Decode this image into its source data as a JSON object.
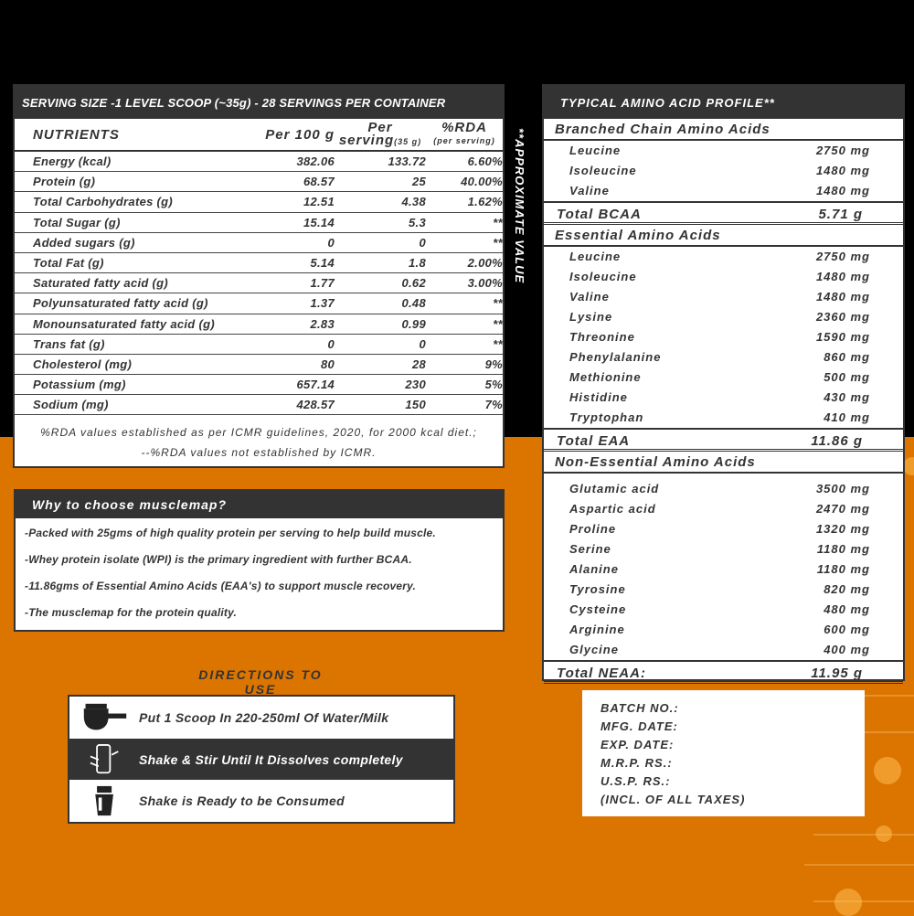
{
  "colors": {
    "background_top": "#000000",
    "background_bottom": "#dc7400",
    "panel_header": "#333333"
  },
  "nutrition": {
    "header": "SERVING SIZE -1 LEVEL SCOOP (~35g) - 28 SERVINGS PER CONTAINER",
    "columns": {
      "nutrients": "NUTRIENTS",
      "per100": "Per 100 g",
      "per_serving": "Per",
      "per_serving2": "serving",
      "per_serving_unit": "(35 g)",
      "rda": "%RDA",
      "rda_sub": "(per serving)"
    },
    "rows": [
      {
        "name": "Energy (kcal)",
        "per100": "382.06",
        "serving": "133.72",
        "rda": "6.60%"
      },
      {
        "name": "Protein (g)",
        "per100": "68.57",
        "serving": "25",
        "rda": "40.00%"
      },
      {
        "name": "Total Carbohydrates (g)",
        "per100": "12.51",
        "serving": "4.38",
        "rda": "1.62%"
      },
      {
        "name": "Total Sugar (g)",
        "per100": "15.14",
        "serving": "5.3",
        "rda": "**"
      },
      {
        "name": "Added sugars (g)",
        "per100": "0",
        "serving": "0",
        "rda": "**"
      },
      {
        "name": "Total Fat (g)",
        "per100": "5.14",
        "serving": "1.8",
        "rda": "2.00%"
      },
      {
        "name": "Saturated fatty acid (g)",
        "per100": "1.77",
        "serving": "0.62",
        "rda": "3.00%"
      },
      {
        "name": "Polyunsaturated fatty acid (g)",
        "per100": "1.37",
        "serving": "0.48",
        "rda": "**"
      },
      {
        "name": "Monounsaturated fatty acid (g)",
        "per100": "2.83",
        "serving": "0.99",
        "rda": "**"
      },
      {
        "name": "Trans fat (g)",
        "per100": "0",
        "serving": "0",
        "rda": "**"
      },
      {
        "name": "Cholesterol (mg)",
        "per100": "80",
        "serving": "28",
        "rda": "9%"
      },
      {
        "name": "Potassium (mg)",
        "per100": "657.14",
        "serving": "230",
        "rda": "5%"
      },
      {
        "name": "Sodium (mg)",
        "per100": "428.57",
        "serving": "150",
        "rda": "7%"
      }
    ],
    "footnote1": "%RDA values established as per ICMR guidelines, 2020, for 2000 kcal diet.;",
    "footnote2": "--%RDA values not established by ICMR."
  },
  "approx_note": "**APPROXIMATE VALUE",
  "why": {
    "title": "Why to choose musclemap?",
    "points": [
      "-Packed with 25gms of high quality protein per serving to help build muscle.",
      "-Whey protein isolate (WPI) is the primary ingredient with further BCAA.",
      "-11.86gms of Essential Amino Acids (EAA's) to support muscle recovery.",
      "-The musclemap for the protein quality."
    ]
  },
  "directions": {
    "title": "DIRECTIONS TO USE",
    "steps": [
      {
        "icon": "scoop-icon",
        "text": "Put 1 Scoop In 220-250ml Of Water/Milk"
      },
      {
        "icon": "shake-hand-icon",
        "text": "Shake & Stir Until It Dissolves completely"
      },
      {
        "icon": "shaker-bottle-icon",
        "text": "Shake is Ready to be Consumed"
      }
    ]
  },
  "amino": {
    "header": "TYPICAL AMINO ACID PROFILE**",
    "bcaa": {
      "title": "Branched Chain Amino Acids",
      "items": [
        [
          "Leucine",
          "2750 mg"
        ],
        [
          "Isoleucine",
          "1480 mg"
        ],
        [
          "Valine",
          "1480 mg"
        ]
      ],
      "total_label": "Total BCAA",
      "total": "5.71 g"
    },
    "eaa": {
      "title": "Essential Amino Acids",
      "items": [
        [
          "Leucine",
          "2750 mg"
        ],
        [
          "Isoleucine",
          "1480 mg"
        ],
        [
          "Valine",
          "1480 mg"
        ],
        [
          "Lysine",
          "2360 mg"
        ],
        [
          "Threonine",
          "1590 mg"
        ],
        [
          "Phenylalanine",
          "860 mg"
        ],
        [
          "Methionine",
          "500 mg"
        ],
        [
          "Histidine",
          "430 mg"
        ],
        [
          "Tryptophan",
          "410 mg"
        ]
      ],
      "total_label": "Total EAA",
      "total": "11.86 g"
    },
    "neaa": {
      "title": "Non-Essential Amino Acids",
      "items": [
        [
          "Glutamic acid",
          "3500 mg"
        ],
        [
          "Aspartic acid",
          "2470 mg"
        ],
        [
          "Proline",
          "1320 mg"
        ],
        [
          "Serine",
          "1180 mg"
        ],
        [
          "Alanine",
          "1180 mg"
        ],
        [
          "Tyrosine",
          "820 mg"
        ],
        [
          "Cysteine",
          "480 mg"
        ],
        [
          "Arginine",
          "600 mg"
        ],
        [
          "Glycine",
          "400 mg"
        ]
      ],
      "total_label": "Total NEAA:",
      "total": "11.95 g"
    }
  },
  "batch": {
    "lines": [
      "BATCH  NO.:",
      "MFG.  DATE:",
      "EXP.   DATE:",
      "M.R.P.  RS.:",
      "U.S.P.    RS.:",
      "(INCL. OF ALL TAXES)"
    ]
  }
}
